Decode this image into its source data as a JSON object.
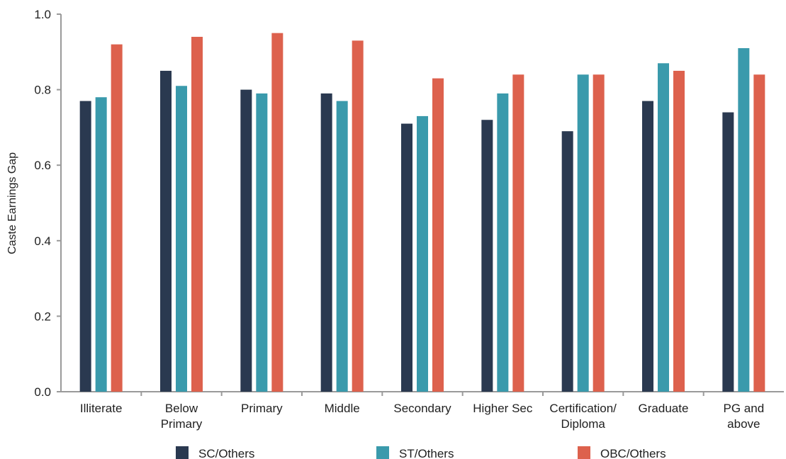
{
  "chart_data": {
    "type": "bar",
    "title": "",
    "xlabel": "",
    "ylabel": "Caste Earnings Gap",
    "ylim": [
      0,
      1.0
    ],
    "yticks": [
      "0.0",
      "0.2",
      "0.4",
      "0.6",
      "0.8",
      "1.0"
    ],
    "grid": false,
    "legend_position": "bottom",
    "categories": [
      [
        "Illiterate"
      ],
      [
        "Below",
        "Primary"
      ],
      [
        "Primary"
      ],
      [
        "Middle"
      ],
      [
        "Secondary"
      ],
      [
        "Higher Sec"
      ],
      [
        "Certification/",
        "Diploma"
      ],
      [
        "Graduate"
      ],
      [
        "PG and",
        "above"
      ]
    ],
    "series": [
      {
        "name": "SC/Others",
        "color": "#2a3950",
        "values": [
          0.77,
          0.85,
          0.8,
          0.79,
          0.71,
          0.72,
          0.69,
          0.77,
          0.74
        ]
      },
      {
        "name": "ST/Others",
        "color": "#3a9aac",
        "values": [
          0.78,
          0.81,
          0.79,
          0.77,
          0.73,
          0.79,
          0.84,
          0.87,
          0.91
        ]
      },
      {
        "name": "OBC/Others",
        "color": "#dd614d",
        "values": [
          0.92,
          0.94,
          0.95,
          0.93,
          0.83,
          0.84,
          0.84,
          0.85,
          0.84
        ]
      }
    ]
  }
}
